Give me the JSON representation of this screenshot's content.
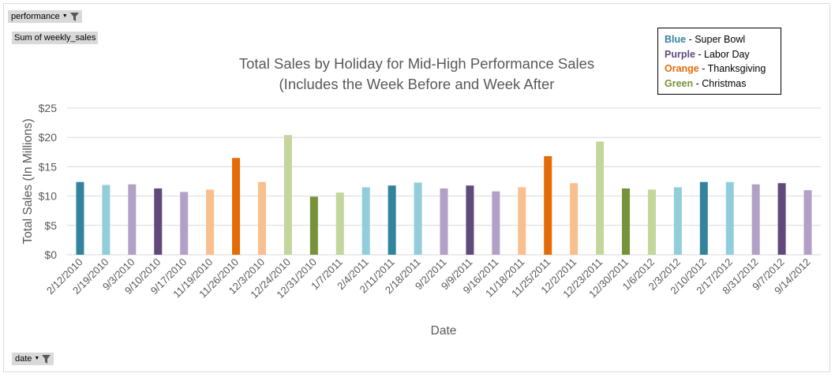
{
  "pivot": {
    "performance_label": "performance",
    "sum_label": "Sum of weekly_sales",
    "date_label": "date"
  },
  "legend": [
    {
      "color_name": "Blue",
      "desc": " - Super Bowl",
      "color": "#31849b"
    },
    {
      "color_name": "Purple",
      "desc": " - Labor Day",
      "color": "#604a7b"
    },
    {
      "color_name": "Orange",
      "desc": " - Thanksgiving",
      "color": "#e36c09"
    },
    {
      "color_name": "Green",
      "desc": " - Christmas",
      "color": "#76923c"
    }
  ],
  "chart_data": {
    "type": "bar",
    "title": "Total Sales by Holiday for Mid-High Performance Sales",
    "subtitle": "(Includes the Week Before and Week After",
    "xlabel": "Date",
    "ylabel": "Total Sales (In Millions)",
    "ylim": [
      0,
      25
    ],
    "yticks": [
      0,
      5,
      10,
      15,
      20,
      25
    ],
    "ytick_labels": [
      "$0",
      "$5",
      "$10",
      "$15",
      "$20",
      "$25"
    ],
    "grid": true,
    "categories": [
      "2/12/2010",
      "2/19/2010",
      "9/3/2010",
      "9/10/2010",
      "9/17/2010",
      "11/19/2010",
      "11/26/2010",
      "12/3/2010",
      "12/24/2010",
      "12/31/2010",
      "1/7/2011",
      "2/4/2011",
      "2/11/2011",
      "2/18/2011",
      "9/2/2011",
      "9/9/2011",
      "9/16/2011",
      "11/18/2011",
      "11/25/2011",
      "12/2/2011",
      "12/23/2011",
      "12/30/2011",
      "1/6/2012",
      "2/3/2012",
      "2/10/2012",
      "2/17/2012",
      "8/31/2012",
      "9/7/2012",
      "9/14/2012"
    ],
    "values": [
      12.4,
      11.9,
      12.0,
      11.3,
      10.7,
      11.1,
      16.5,
      12.4,
      20.4,
      9.9,
      10.6,
      11.5,
      11.8,
      12.3,
      11.3,
      11.8,
      10.8,
      11.5,
      16.8,
      12.2,
      19.3,
      11.3,
      11.1,
      11.5,
      12.4,
      12.4,
      12.0,
      12.2,
      11.0
    ],
    "colors": [
      "#31849b",
      "#92cddc",
      "#b2a1c7",
      "#604a7b",
      "#b2a1c7",
      "#fabf8f",
      "#e36c09",
      "#fabf8f",
      "#c3d69b",
      "#76923c",
      "#c3d69b",
      "#92cddc",
      "#31849b",
      "#92cddc",
      "#b2a1c7",
      "#604a7b",
      "#b2a1c7",
      "#fabf8f",
      "#e36c09",
      "#fabf8f",
      "#c3d69b",
      "#76923c",
      "#c3d69b",
      "#92cddc",
      "#31849b",
      "#92cddc",
      "#b2a1c7",
      "#604a7b",
      "#b2a1c7"
    ]
  }
}
